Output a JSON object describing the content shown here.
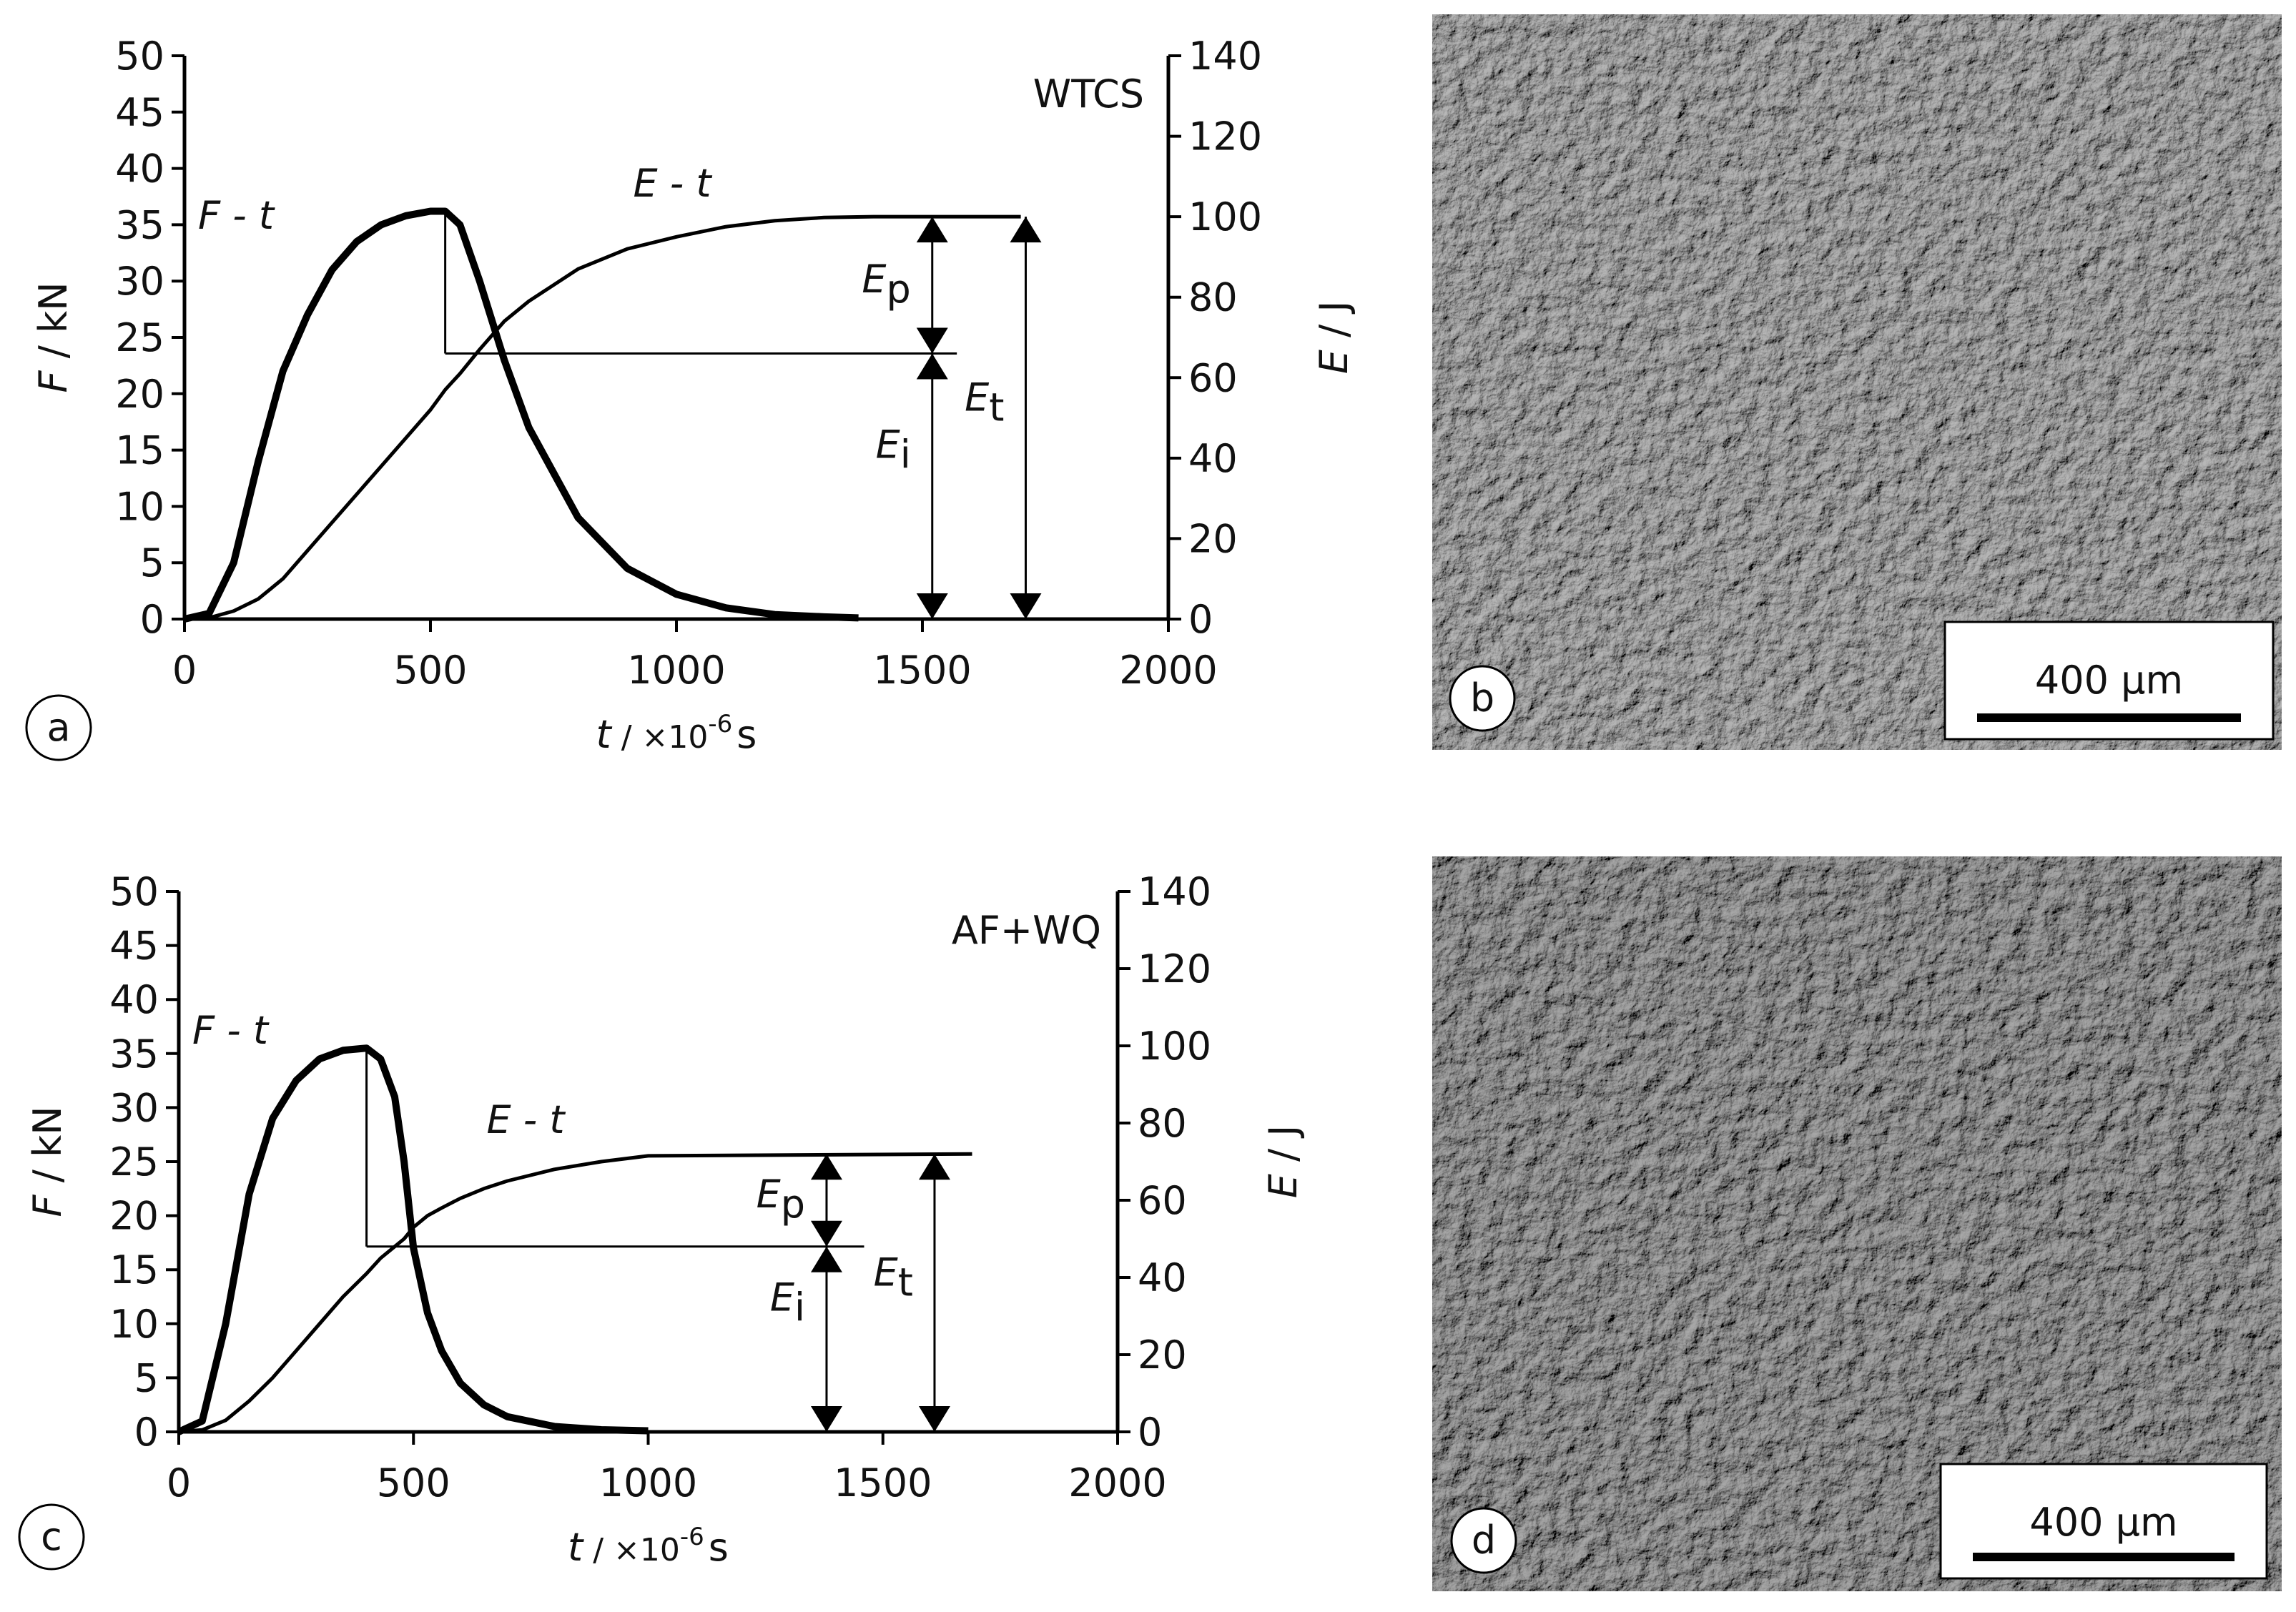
{
  "chart_data": [
    {
      "type": "line",
      "panel": "a",
      "tag": "WTCS",
      "y_label": {
        "symbol": "F",
        "unit": " / kN"
      },
      "y2_label": {
        "symbol": "E",
        "unit": " / J"
      },
      "x_label": {
        "symbol": "t",
        "unit": " / ×10",
        "exponent": "-6",
        "unit_end": "s"
      },
      "xlim": [
        0,
        2000
      ],
      "xticks": [
        0,
        500,
        1000,
        1500,
        2000
      ],
      "ylim": [
        0,
        50
      ],
      "yticks": [
        0,
        5,
        10,
        15,
        20,
        25,
        30,
        35,
        40,
        45,
        50
      ],
      "y2lim": [
        0,
        140
      ],
      "y2ticks": [
        0,
        20,
        40,
        60,
        80,
        100,
        120,
        140
      ],
      "series": [
        {
          "name": "F - t",
          "color": "#000000",
          "x": [
            0,
            50,
            100,
            150,
            200,
            250,
            300,
            350,
            400,
            450,
            500,
            530,
            560,
            600,
            650,
            700,
            800,
            900,
            1000,
            1100,
            1200,
            1300,
            1370
          ],
          "values": [
            0,
            0.5,
            5,
            14,
            22,
            27,
            31,
            33.5,
            35,
            35.8,
            36.2,
            36.2,
            35,
            30,
            23,
            17,
            9,
            4.5,
            2.2,
            1,
            0.4,
            0.2,
            0.1
          ]
        },
        {
          "name": "E - t",
          "color": "#000000",
          "axis": "y2",
          "x": [
            0,
            50,
            100,
            150,
            200,
            250,
            300,
            350,
            400,
            450,
            500,
            530,
            560,
            600,
            650,
            700,
            800,
            900,
            1000,
            1100,
            1200,
            1300,
            1400,
            1700
          ],
          "values": [
            0,
            0.3,
            2,
            5,
            10,
            17,
            24,
            31,
            38,
            45,
            52,
            57,
            61,
            67,
            74,
            79,
            87,
            92,
            95,
            97.5,
            99,
            99.8,
            100,
            100
          ]
        }
      ],
      "markers": {
        "peak_x": 530,
        "peak_F": 36.2,
        "split_E": 66,
        "split_end_x": 1570,
        "total_E": 100,
        "partial_arrow_x": 1520,
        "total_arrow_x": 1710
      },
      "energy_labels": [
        {
          "symbol": "E",
          "sub": "p"
        },
        {
          "symbol": "E",
          "sub": "i"
        },
        {
          "symbol": "E",
          "sub": "t"
        }
      ]
    },
    {
      "type": "line",
      "panel": "c",
      "tag": "AF+WQ",
      "y_label": {
        "symbol": "F",
        "unit": " / kN"
      },
      "y2_label": {
        "symbol": "E",
        "unit": " / J"
      },
      "x_label": {
        "symbol": "t",
        "unit": " / ×10",
        "exponent": "-6",
        "unit_end": "s"
      },
      "xlim": [
        0,
        2000
      ],
      "xticks": [
        0,
        500,
        1000,
        1500,
        2000
      ],
      "ylim": [
        0,
        50
      ],
      "yticks": [
        0,
        5,
        10,
        15,
        20,
        25,
        30,
        35,
        40,
        45,
        50
      ],
      "y2lim": [
        0,
        140
      ],
      "y2ticks": [
        0,
        20,
        40,
        60,
        80,
        100,
        120,
        140
      ],
      "series": [
        {
          "name": "F - t",
          "color": "#000000",
          "x": [
            0,
            50,
            100,
            150,
            200,
            250,
            300,
            350,
            400,
            430,
            460,
            480,
            500,
            530,
            560,
            600,
            650,
            700,
            800,
            900,
            1000
          ],
          "values": [
            0,
            1,
            10,
            22,
            29,
            32.5,
            34.5,
            35.3,
            35.5,
            34.5,
            31,
            25,
            17,
            11,
            7.5,
            4.5,
            2.5,
            1.4,
            0.5,
            0.2,
            0.1
          ]
        },
        {
          "name": "E - t",
          "color": "#000000",
          "axis": "y2",
          "x": [
            0,
            50,
            100,
            150,
            200,
            250,
            300,
            350,
            400,
            430,
            460,
            480,
            500,
            530,
            560,
            600,
            650,
            700,
            800,
            900,
            1000,
            1690
          ],
          "values": [
            0,
            0.5,
            3,
            8,
            14,
            21,
            28,
            35,
            41,
            45,
            48,
            50,
            53,
            56,
            58,
            60.5,
            63,
            65,
            68,
            70,
            71.5,
            72
          ]
        }
      ],
      "markers": {
        "peak_x": 400,
        "peak_F": 35.5,
        "split_E": 48,
        "split_end_x": 1460,
        "total_E": 72,
        "partial_arrow_x": 1380,
        "total_arrow_x": 1610
      },
      "energy_labels": [
        {
          "symbol": "E",
          "sub": "p"
        },
        {
          "symbol": "E",
          "sub": "i"
        },
        {
          "symbol": "E",
          "sub": "t"
        }
      ]
    }
  ],
  "images": [
    {
      "panel": "b",
      "scale_bar": "400 µm"
    },
    {
      "panel": "d",
      "scale_bar": "400 µm"
    }
  ]
}
